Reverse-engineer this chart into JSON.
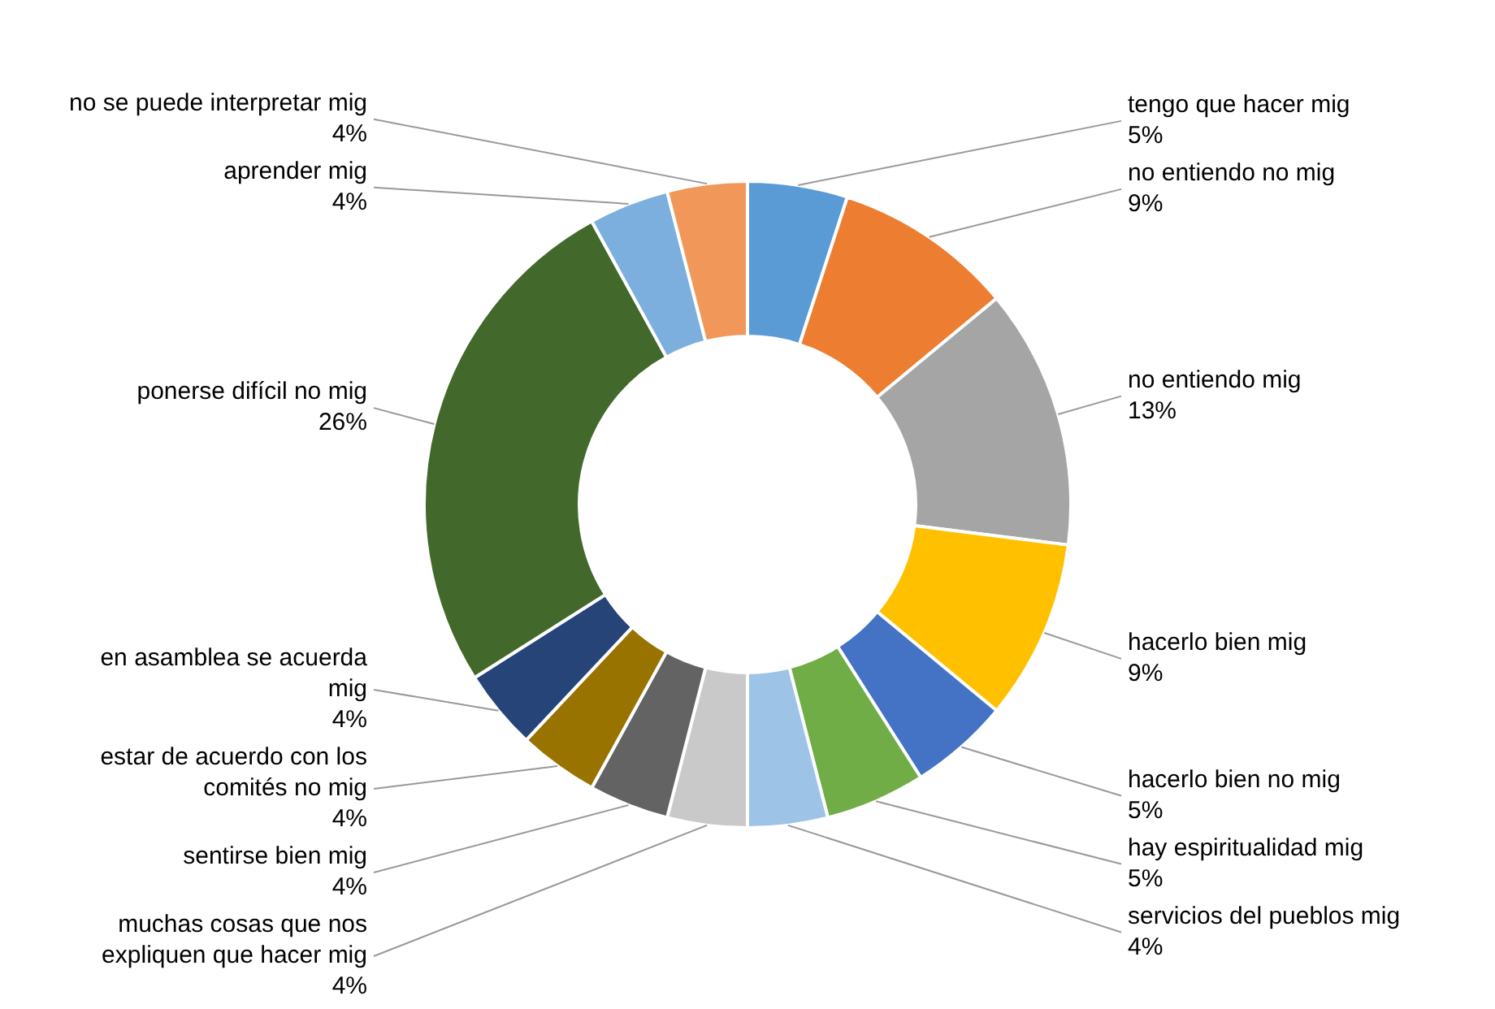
{
  "chart_data": {
    "type": "donut",
    "categories": [
      "tengo que hacer mig",
      "no entiendo no mig",
      "no entiendo mig",
      "hacerlo bien mig",
      "hacerlo bien no mig",
      "hay espiritualidad mig",
      "servicios del pueblos mig",
      "muchas cosas que nos expliquen que hacer mig",
      "sentirse bien mig",
      "estar de acuerdo con los comités no mig",
      "en asamblea se acuerda mig",
      "ponerse difícil no mig",
      "aprender mig",
      "no se puede interpretar mig"
    ],
    "values": [
      5,
      9,
      13,
      9,
      5,
      5,
      4,
      4,
      4,
      4,
      4,
      26,
      4,
      4
    ],
    "colors": [
      "#5b9bd5",
      "#ed7d31",
      "#a5a5a5",
      "#ffc000",
      "#4472c4",
      "#70ad47",
      "#9dc3e6",
      "#c9c9c9",
      "#636363",
      "#997300",
      "#264478",
      "#43682b",
      "#7cafdd",
      "#f1975a"
    ],
    "value_labels": [
      "5%",
      "9%",
      "13%",
      "9%",
      "5%",
      "5%",
      "4%",
      "4%",
      "4%",
      "4%",
      "4%",
      "26%",
      "4%",
      "4%"
    ]
  }
}
